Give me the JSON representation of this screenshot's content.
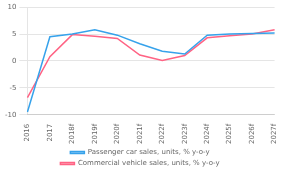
{
  "chart_data": {
    "type": "line",
    "categories": [
      "2016",
      "2017",
      "2018f",
      "2019f",
      "2020f",
      "2021f",
      "2022f",
      "2023f",
      "2024f",
      "2025f",
      "2026f",
      "2027f"
    ],
    "series": [
      {
        "name": "Passenger car sales, units, % y-o-y",
        "values": [
          -9.5,
          4.5,
          5.0,
          5.8,
          4.8,
          3.2,
          1.8,
          1.3,
          4.8,
          5.0,
          5.1,
          5.2
        ]
      },
      {
        "name": "Commercial vehicle sales, units, % y-o-y",
        "values": [
          -6.8,
          0.8,
          4.9,
          4.6,
          4.2,
          1.1,
          0.1,
          1.0,
          4.3,
          4.7,
          5.0,
          5.8
        ]
      }
    ],
    "ylim": [
      -10,
      10
    ],
    "yticks": [
      -10,
      -5,
      0,
      5,
      10
    ],
    "grid": true,
    "legend": "bottom",
    "marker": "none"
  }
}
